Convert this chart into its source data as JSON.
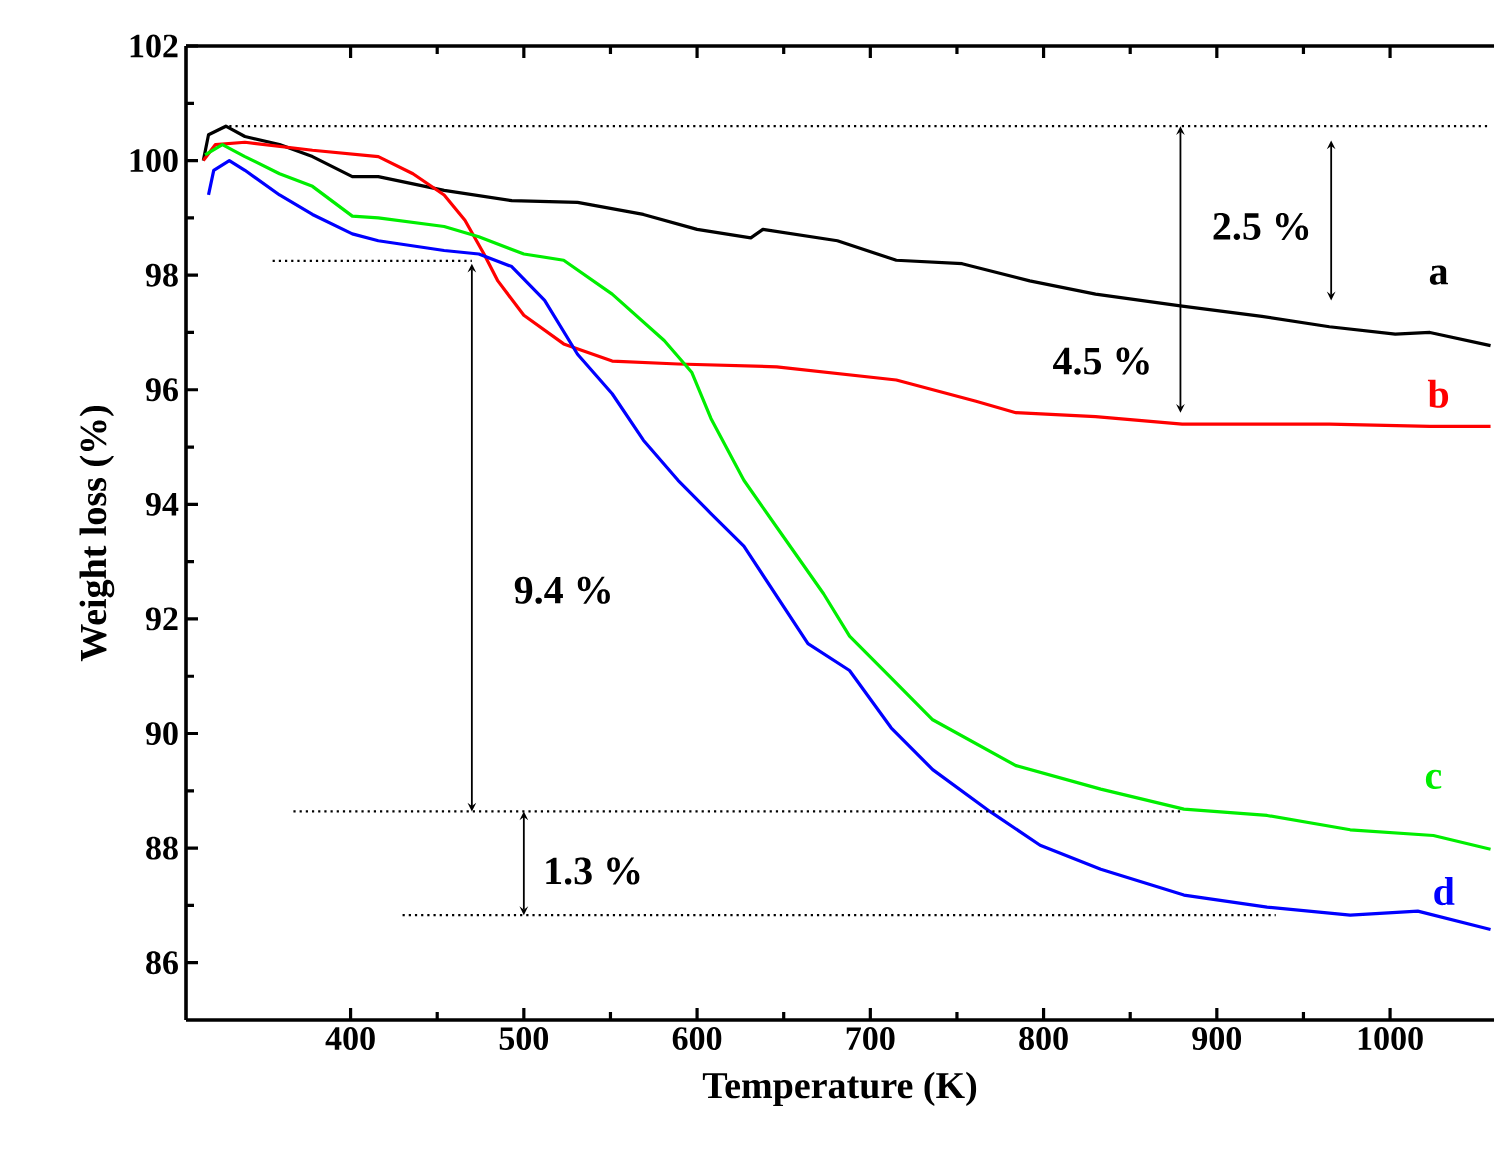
{
  "chart_data": {
    "type": "line",
    "xlabel": "Temperature (K)",
    "ylabel": "Weight loss (%)",
    "xlim": [
      305,
      1060
    ],
    "ylim": [
      85,
      102
    ],
    "xticks": [
      400,
      500,
      600,
      700,
      800,
      900,
      1000
    ],
    "yticks": [
      86,
      88,
      90,
      92,
      94,
      96,
      98,
      100,
      102
    ],
    "series": [
      {
        "name": "a",
        "color": "#000000",
        "x": [
          315,
          318,
          328,
          339,
          359,
          378,
          401,
          416,
          454,
          493,
          531,
          569,
          600,
          631,
          638,
          681,
          715,
          753,
          792,
          830,
          880,
          926,
          965,
          1003,
          1023,
          1058
        ],
        "values": [
          100.0,
          100.45,
          100.6,
          100.42,
          100.28,
          100.07,
          99.72,
          99.72,
          99.48,
          99.3,
          99.27,
          99.06,
          98.8,
          98.65,
          98.8,
          98.6,
          98.26,
          98.2,
          97.9,
          97.67,
          97.46,
          97.28,
          97.1,
          96.97,
          97.0,
          96.77
        ]
      },
      {
        "name": "b",
        "color": "#ff0000",
        "x": [
          315,
          322,
          339,
          378,
          416,
          436,
          454,
          466,
          477,
          485,
          500,
          523,
          551,
          589,
          646,
          715,
          761,
          784,
          830,
          880,
          965,
          1023,
          1058
        ],
        "values": [
          100.0,
          100.28,
          100.32,
          100.18,
          100.07,
          99.77,
          99.4,
          98.96,
          98.37,
          97.9,
          97.3,
          96.8,
          96.5,
          96.45,
          96.4,
          96.17,
          95.8,
          95.6,
          95.53,
          95.4,
          95.4,
          95.36,
          95.36
        ]
      },
      {
        "name": "c",
        "color": "#00ee00",
        "x": [
          316,
          326,
          339,
          359,
          378,
          401,
          416,
          454,
          474,
          500,
          523,
          551,
          581,
          597,
          608,
          627,
          646,
          673,
          688,
          712,
          736,
          784,
          833,
          881,
          929,
          977,
          1025,
          1058
        ],
        "values": [
          100.1,
          100.28,
          100.07,
          99.77,
          99.55,
          99.03,
          99.0,
          98.85,
          98.67,
          98.37,
          98.26,
          97.67,
          96.86,
          96.3,
          95.5,
          94.42,
          93.6,
          92.44,
          91.7,
          90.97,
          90.24,
          89.44,
          89.03,
          88.68,
          88.57,
          88.32,
          88.22,
          87.98
        ]
      },
      {
        "name": "d",
        "color": "#0000ff",
        "x": [
          318,
          321,
          330,
          339,
          359,
          378,
          401,
          416,
          454,
          474,
          493,
          512,
          531,
          551,
          569,
          589,
          608,
          627,
          664,
          688,
          712,
          736,
          769,
          798,
          833,
          881,
          929,
          977,
          1016,
          1058
        ],
        "values": [
          99.4,
          99.83,
          100.0,
          99.83,
          99.4,
          99.06,
          98.72,
          98.6,
          98.43,
          98.37,
          98.15,
          97.56,
          96.62,
          95.93,
          95.12,
          94.42,
          93.84,
          93.27,
          91.57,
          91.1,
          90.1,
          89.37,
          88.64,
          88.05,
          87.63,
          87.18,
          86.97,
          86.83,
          86.9,
          86.58
        ]
      },
      {
        "color": "#000000",
        "line_style": "dotted",
        "x": [
          330,
          1058
        ],
        "values": [
          100.6,
          100.6
        ]
      },
      {
        "color": "#000000",
        "line_style": "dotted",
        "x": [
          355,
          470
        ],
        "values": [
          98.25,
          98.25
        ]
      },
      {
        "color": "#000000",
        "line_style": "dotted",
        "x": [
          367,
          880
        ],
        "values": [
          88.64,
          88.64
        ]
      },
      {
        "color": "#000000",
        "line_style": "dotted",
        "x": [
          430,
          934
        ],
        "values": [
          86.83,
          86.83
        ]
      }
    ],
    "annotations": [
      "2.5 %",
      {
        "text": "4.5 %",
        "x": 879,
        "y": 95.6
      },
      "9.4 %",
      {
        "text": "1.3 %",
        "x": 500,
        "y": 86.83
      }
    ]
  }
}
